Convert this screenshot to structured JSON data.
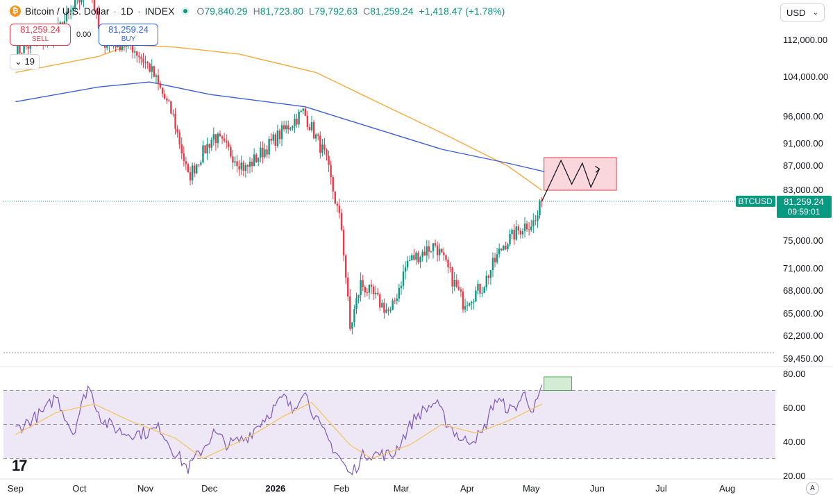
{
  "header": {
    "icon": "bitcoin-icon",
    "symbol": "Bitcoin / U.S. Dollar",
    "interval": "1D",
    "exchange": "INDEX",
    "open_label": "O",
    "open": "79,840.29",
    "high_label": "H",
    "high": "81,723.80",
    "low_label": "L",
    "low": "79,792.63",
    "close_label": "C",
    "close": "81,259.24",
    "change": "+1,418.47 (+1.78%)"
  },
  "trade": {
    "sell_price": "81,259.24",
    "sell_label": "SELL",
    "buy_price": "81,259.24",
    "buy_label": "BUY",
    "spread": "0.00"
  },
  "indicators_count": "19",
  "currency": "USD",
  "last_price": {
    "symbol": "BTCUSD",
    "price": "81,259.24",
    "countdown": "09:59:01"
  },
  "colors": {
    "up": "#089981",
    "down": "#f23645",
    "ma_fast": "#f7a93b",
    "ma_slow": "#3d5fd6",
    "rsi_line": "#7e57c2",
    "rsi_ma": "#f5c35a",
    "rsi_band": "#ede7f6"
  },
  "chart_data": [
    {
      "type": "candlestick",
      "title": "Bitcoin / U.S. Dollar · 1D · INDEX",
      "price_axis": [
        "112,000.00",
        "104,000.00",
        "96,000.00",
        "91,000.00",
        "87,000.00",
        "83,000.00",
        "75,000.00",
        "71,000.00",
        "68,000.00",
        "65,000.00",
        "62,200.00",
        "59,450.00"
      ],
      "time_axis": [
        "Sep",
        "Oct",
        "Nov",
        "Dec",
        "2026",
        "Feb",
        "Mar",
        "Apr",
        "May",
        "Jun",
        "Jul",
        "Aug"
      ],
      "last_close": 81259.24,
      "anchors": [
        {
          "date": "2025-09-01",
          "close": 109500
        },
        {
          "date": "2025-09-20",
          "close": 113500
        },
        {
          "date": "2025-10-06",
          "close": 124000
        },
        {
          "date": "2025-10-11",
          "close": 112000
        },
        {
          "date": "2025-10-25",
          "close": 111000
        },
        {
          "date": "2025-11-03",
          "close": 106000
        },
        {
          "date": "2025-11-14",
          "close": 96000
        },
        {
          "date": "2025-11-21",
          "close": 85000
        },
        {
          "date": "2025-12-03",
          "close": 92500
        },
        {
          "date": "2025-12-18",
          "close": 86500
        },
        {
          "date": "2026-01-05",
          "close": 93500
        },
        {
          "date": "2026-01-14",
          "close": 97000
        },
        {
          "date": "2026-01-24",
          "close": 89000
        },
        {
          "date": "2026-02-01",
          "close": 77000
        },
        {
          "date": "2026-02-05",
          "close": 63000
        },
        {
          "date": "2026-02-10",
          "close": 69000
        },
        {
          "date": "2026-02-24",
          "close": 65000
        },
        {
          "date": "2026-03-04",
          "close": 72000
        },
        {
          "date": "2026-03-17",
          "close": 74500
        },
        {
          "date": "2026-03-30",
          "close": 66500
        },
        {
          "date": "2026-04-08",
          "close": 68500
        },
        {
          "date": "2026-04-18",
          "close": 74500
        },
        {
          "date": "2026-04-28",
          "close": 77500
        },
        {
          "date": "2026-05-03",
          "close": 78000
        },
        {
          "date": "2026-05-06",
          "close": 81259
        }
      ],
      "moving_averages": [
        {
          "name": "MA fast",
          "color": "#f7a93b",
          "points": [
            [
              "2025-09-01",
              105000
            ],
            [
              "2025-10-10",
              108500
            ],
            [
              "2025-10-25",
              111000
            ],
            [
              "2025-11-15",
              110500
            ],
            [
              "2025-12-15",
              109000
            ],
            [
              "2026-01-20",
              105000
            ],
            [
              "2026-02-20",
              98500
            ],
            [
              "2026-03-20",
              93000
            ],
            [
              "2026-04-20",
              87000
            ],
            [
              "2026-05-06",
              83000
            ]
          ]
        },
        {
          "name": "MA slow",
          "color": "#3d5fd6",
          "points": [
            [
              "2025-09-01",
              99000
            ],
            [
              "2025-10-10",
              102000
            ],
            [
              "2025-11-03",
              103000
            ],
            [
              "2025-12-01",
              100500
            ],
            [
              "2026-01-15",
              98000
            ],
            [
              "2026-02-15",
              94000
            ],
            [
              "2026-03-20",
              90000
            ],
            [
              "2026-04-20",
              87500
            ],
            [
              "2026-05-08",
              86000
            ]
          ]
        }
      ],
      "target_zone": {
        "from": "2026-05-07",
        "to": "2026-06-10",
        "low": 83000,
        "high": 88500
      },
      "projection": [
        [
          "2026-05-06",
          81259
        ],
        [
          "2026-05-15",
          88000
        ],
        [
          "2026-05-20",
          84000
        ],
        [
          "2026-05-25",
          87500
        ],
        [
          "2026-05-29",
          83500
        ],
        [
          "2026-06-02",
          86500
        ]
      ]
    },
    {
      "type": "line",
      "title": "RSI",
      "y_axis": [
        "80.00",
        "60.00",
        "40.00",
        "20.00"
      ],
      "bands": [
        30,
        50,
        70
      ],
      "target_zone": {
        "from": "2026-05-07",
        "to": "2026-05-20",
        "low": 70,
        "high": 78
      },
      "anchors": [
        {
          "date": "2025-09-01",
          "value": 47
        },
        {
          "date": "2025-09-15",
          "value": 58
        },
        {
          "date": "2025-09-20",
          "value": 67
        },
        {
          "date": "2025-09-28",
          "value": 45
        },
        {
          "date": "2025-10-05",
          "value": 73
        },
        {
          "date": "2025-10-12",
          "value": 52
        },
        {
          "date": "2025-10-22",
          "value": 45
        },
        {
          "date": "2025-11-01",
          "value": 45
        },
        {
          "date": "2025-11-08",
          "value": 48
        },
        {
          "date": "2025-11-14",
          "value": 35
        },
        {
          "date": "2025-11-21",
          "value": 24
        },
        {
          "date": "2025-12-03",
          "value": 45
        },
        {
          "date": "2025-12-10",
          "value": 38
        },
        {
          "date": "2025-12-18",
          "value": 42
        },
        {
          "date": "2026-01-05",
          "value": 66
        },
        {
          "date": "2026-01-09",
          "value": 58
        },
        {
          "date": "2026-01-14",
          "value": 71
        },
        {
          "date": "2026-01-22",
          "value": 48
        },
        {
          "date": "2026-01-31",
          "value": 31
        },
        {
          "date": "2026-02-05",
          "value": 20
        },
        {
          "date": "2026-02-12",
          "value": 33
        },
        {
          "date": "2026-02-25",
          "value": 32
        },
        {
          "date": "2026-03-04",
          "value": 47
        },
        {
          "date": "2026-03-08",
          "value": 55
        },
        {
          "date": "2026-03-17",
          "value": 63
        },
        {
          "date": "2026-03-22",
          "value": 52
        },
        {
          "date": "2026-03-30",
          "value": 40
        },
        {
          "date": "2026-04-08",
          "value": 44
        },
        {
          "date": "2026-04-14",
          "value": 65
        },
        {
          "date": "2026-04-22",
          "value": 58
        },
        {
          "date": "2026-04-28",
          "value": 68
        },
        {
          "date": "2026-05-02",
          "value": 58
        },
        {
          "date": "2026-05-06",
          "value": 70
        }
      ],
      "ma_anchors": [
        {
          "date": "2025-09-01",
          "value": 44
        },
        {
          "date": "2025-09-20",
          "value": 57
        },
        {
          "date": "2025-10-08",
          "value": 62
        },
        {
          "date": "2025-10-25",
          "value": 52
        },
        {
          "date": "2025-11-15",
          "value": 42
        },
        {
          "date": "2025-11-28",
          "value": 30
        },
        {
          "date": "2025-12-20",
          "value": 43
        },
        {
          "date": "2026-01-05",
          "value": 55
        },
        {
          "date": "2026-01-18",
          "value": 63
        },
        {
          "date": "2026-02-05",
          "value": 38
        },
        {
          "date": "2026-02-15",
          "value": 30
        },
        {
          "date": "2026-03-05",
          "value": 38
        },
        {
          "date": "2026-03-20",
          "value": 50
        },
        {
          "date": "2026-04-05",
          "value": 45
        },
        {
          "date": "2026-04-20",
          "value": 52
        },
        {
          "date": "2026-05-06",
          "value": 62
        }
      ]
    }
  ]
}
